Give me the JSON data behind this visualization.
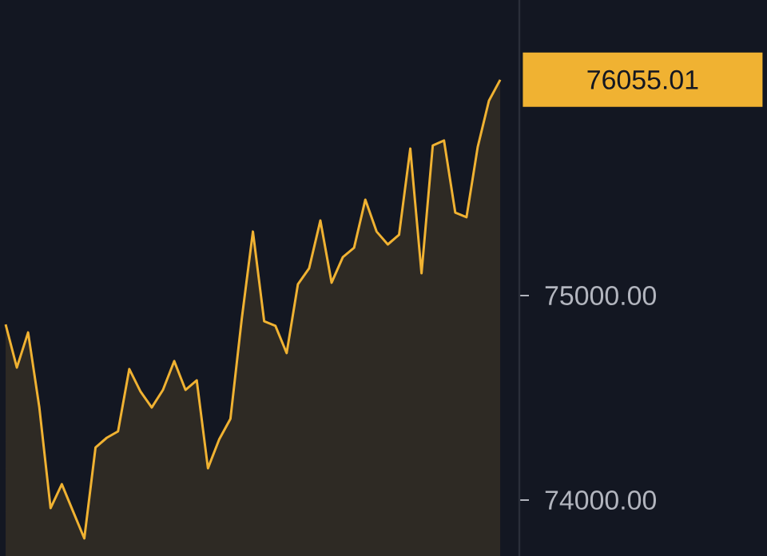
{
  "chart_data": {
    "type": "area",
    "color": "#f0b232",
    "categories": [
      null,
      null,
      null,
      null,
      null,
      null,
      null,
      null,
      null,
      null,
      null,
      null,
      null,
      null,
      null,
      null,
      null,
      null,
      null,
      null,
      null,
      null,
      null,
      null,
      null,
      null,
      null,
      null,
      null,
      null,
      null,
      null,
      null,
      null,
      null,
      null,
      null,
      null,
      null,
      null,
      null,
      null,
      null,
      null,
      null
    ],
    "values": [
      74859,
      74648,
      74820,
      74453,
      73961,
      74078,
      73945,
      73813,
      74258,
      74305,
      74336,
      74641,
      74531,
      74453,
      74539,
      74680,
      74539,
      74586,
      74156,
      74297,
      74398,
      74883,
      75313,
      74875,
      74852,
      74719,
      75055,
      75133,
      75367,
      75063,
      75188,
      75234,
      75469,
      75313,
      75250,
      75297,
      75719,
      75109,
      75734,
      75758,
      75406,
      75383,
      75727,
      75953,
      76055.01
    ],
    "ylim": [
      73727,
      76445
    ],
    "yticks": [
      {
        "value": 74000,
        "label": "74000.00"
      },
      {
        "value": 75000,
        "label": "75000.00"
      }
    ],
    "tick_labels": "y",
    "annotations": [
      "76055.01"
    ]
  }
}
